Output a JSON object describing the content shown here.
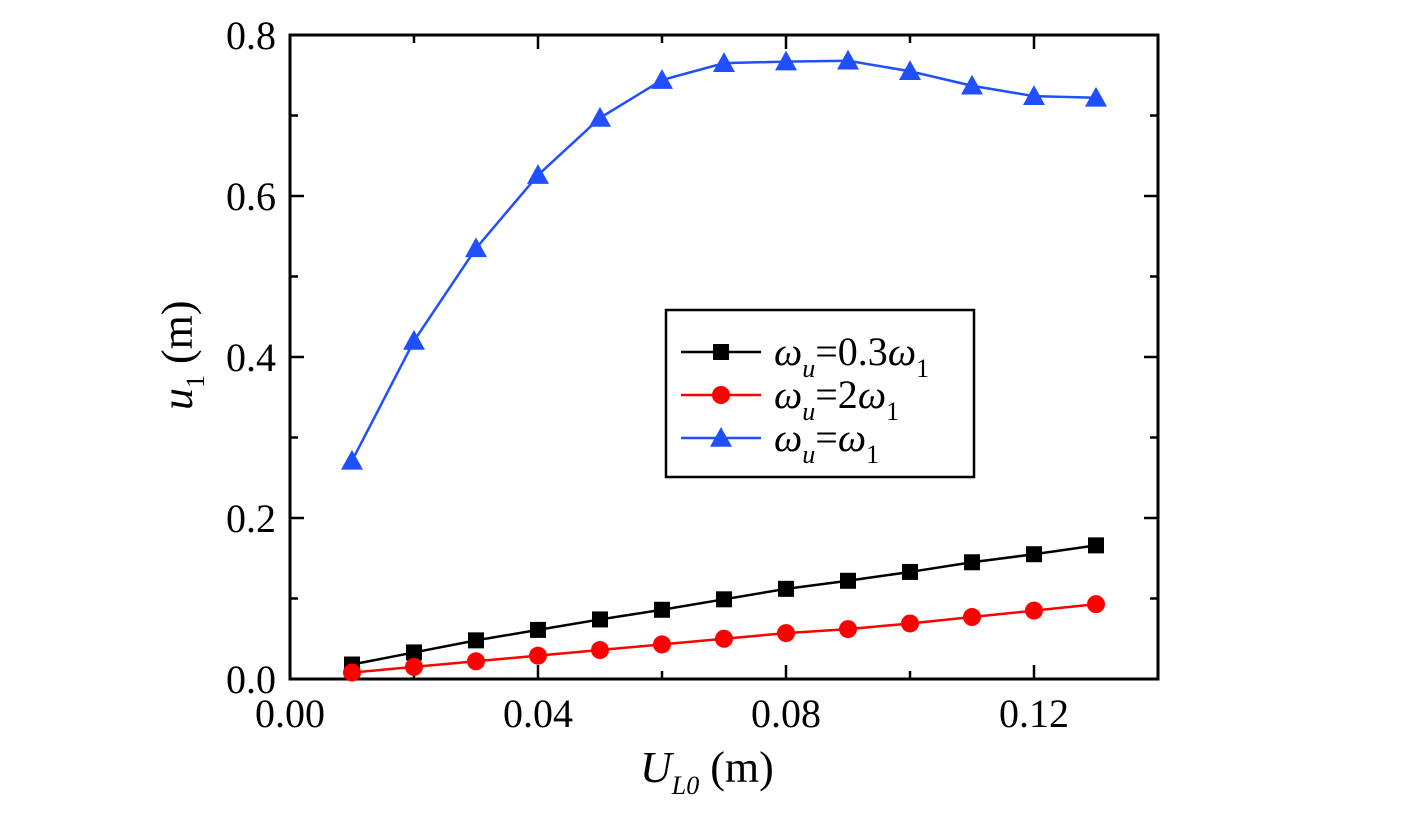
{
  "chart_data": {
    "type": "line",
    "xlabel": {
      "main": "U",
      "sub": "L0",
      "unit": " (m)"
    },
    "ylabel": {
      "main": "u",
      "sub": "1",
      "unit": " (m)"
    },
    "xlim": [
      0.0,
      0.14
    ],
    "ylim": [
      0.0,
      0.8
    ],
    "xticks": [
      0.0,
      0.04,
      0.08,
      0.12
    ],
    "xtick_labels": [
      "0.00",
      "0.04",
      "0.08",
      "0.12"
    ],
    "yticks": [
      0.0,
      0.2,
      0.4,
      0.6,
      0.8
    ],
    "ytick_labels": [
      "0.0",
      "0.2",
      "0.4",
      "0.6",
      "0.8"
    ],
    "grid": false,
    "legend_position": "center-right",
    "x": [
      0.01,
      0.02,
      0.03,
      0.04,
      0.05,
      0.06,
      0.07,
      0.08,
      0.09,
      0.1,
      0.11,
      0.12,
      0.13
    ],
    "series": [
      {
        "legend": {
          "lhs": "ω",
          "lhs_sub": "u",
          "rhs": "=0.3ω",
          "rhs_sub": "1"
        },
        "marker": "square",
        "color": "#000000",
        "values": [
          0.018,
          0.033,
          0.048,
          0.061,
          0.074,
          0.086,
          0.099,
          0.112,
          0.122,
          0.133,
          0.145,
          0.155,
          0.166
        ]
      },
      {
        "legend": {
          "lhs": "ω",
          "lhs_sub": "u",
          "rhs": "=2ω",
          "rhs_sub": "1"
        },
        "marker": "circle",
        "color": "#ff0000",
        "values": [
          0.008,
          0.015,
          0.022,
          0.029,
          0.036,
          0.043,
          0.05,
          0.057,
          0.062,
          0.069,
          0.077,
          0.085,
          0.093
        ]
      },
      {
        "legend": {
          "lhs": "ω",
          "lhs_sub": "u",
          "rhs": "=ω",
          "rhs_sub": "1"
        },
        "marker": "triangle",
        "color": "#1f4fff",
        "values": [
          0.271,
          0.42,
          0.535,
          0.626,
          0.697,
          0.744,
          0.765,
          0.767,
          0.768,
          0.755,
          0.737,
          0.724,
          0.722
        ]
      }
    ]
  }
}
